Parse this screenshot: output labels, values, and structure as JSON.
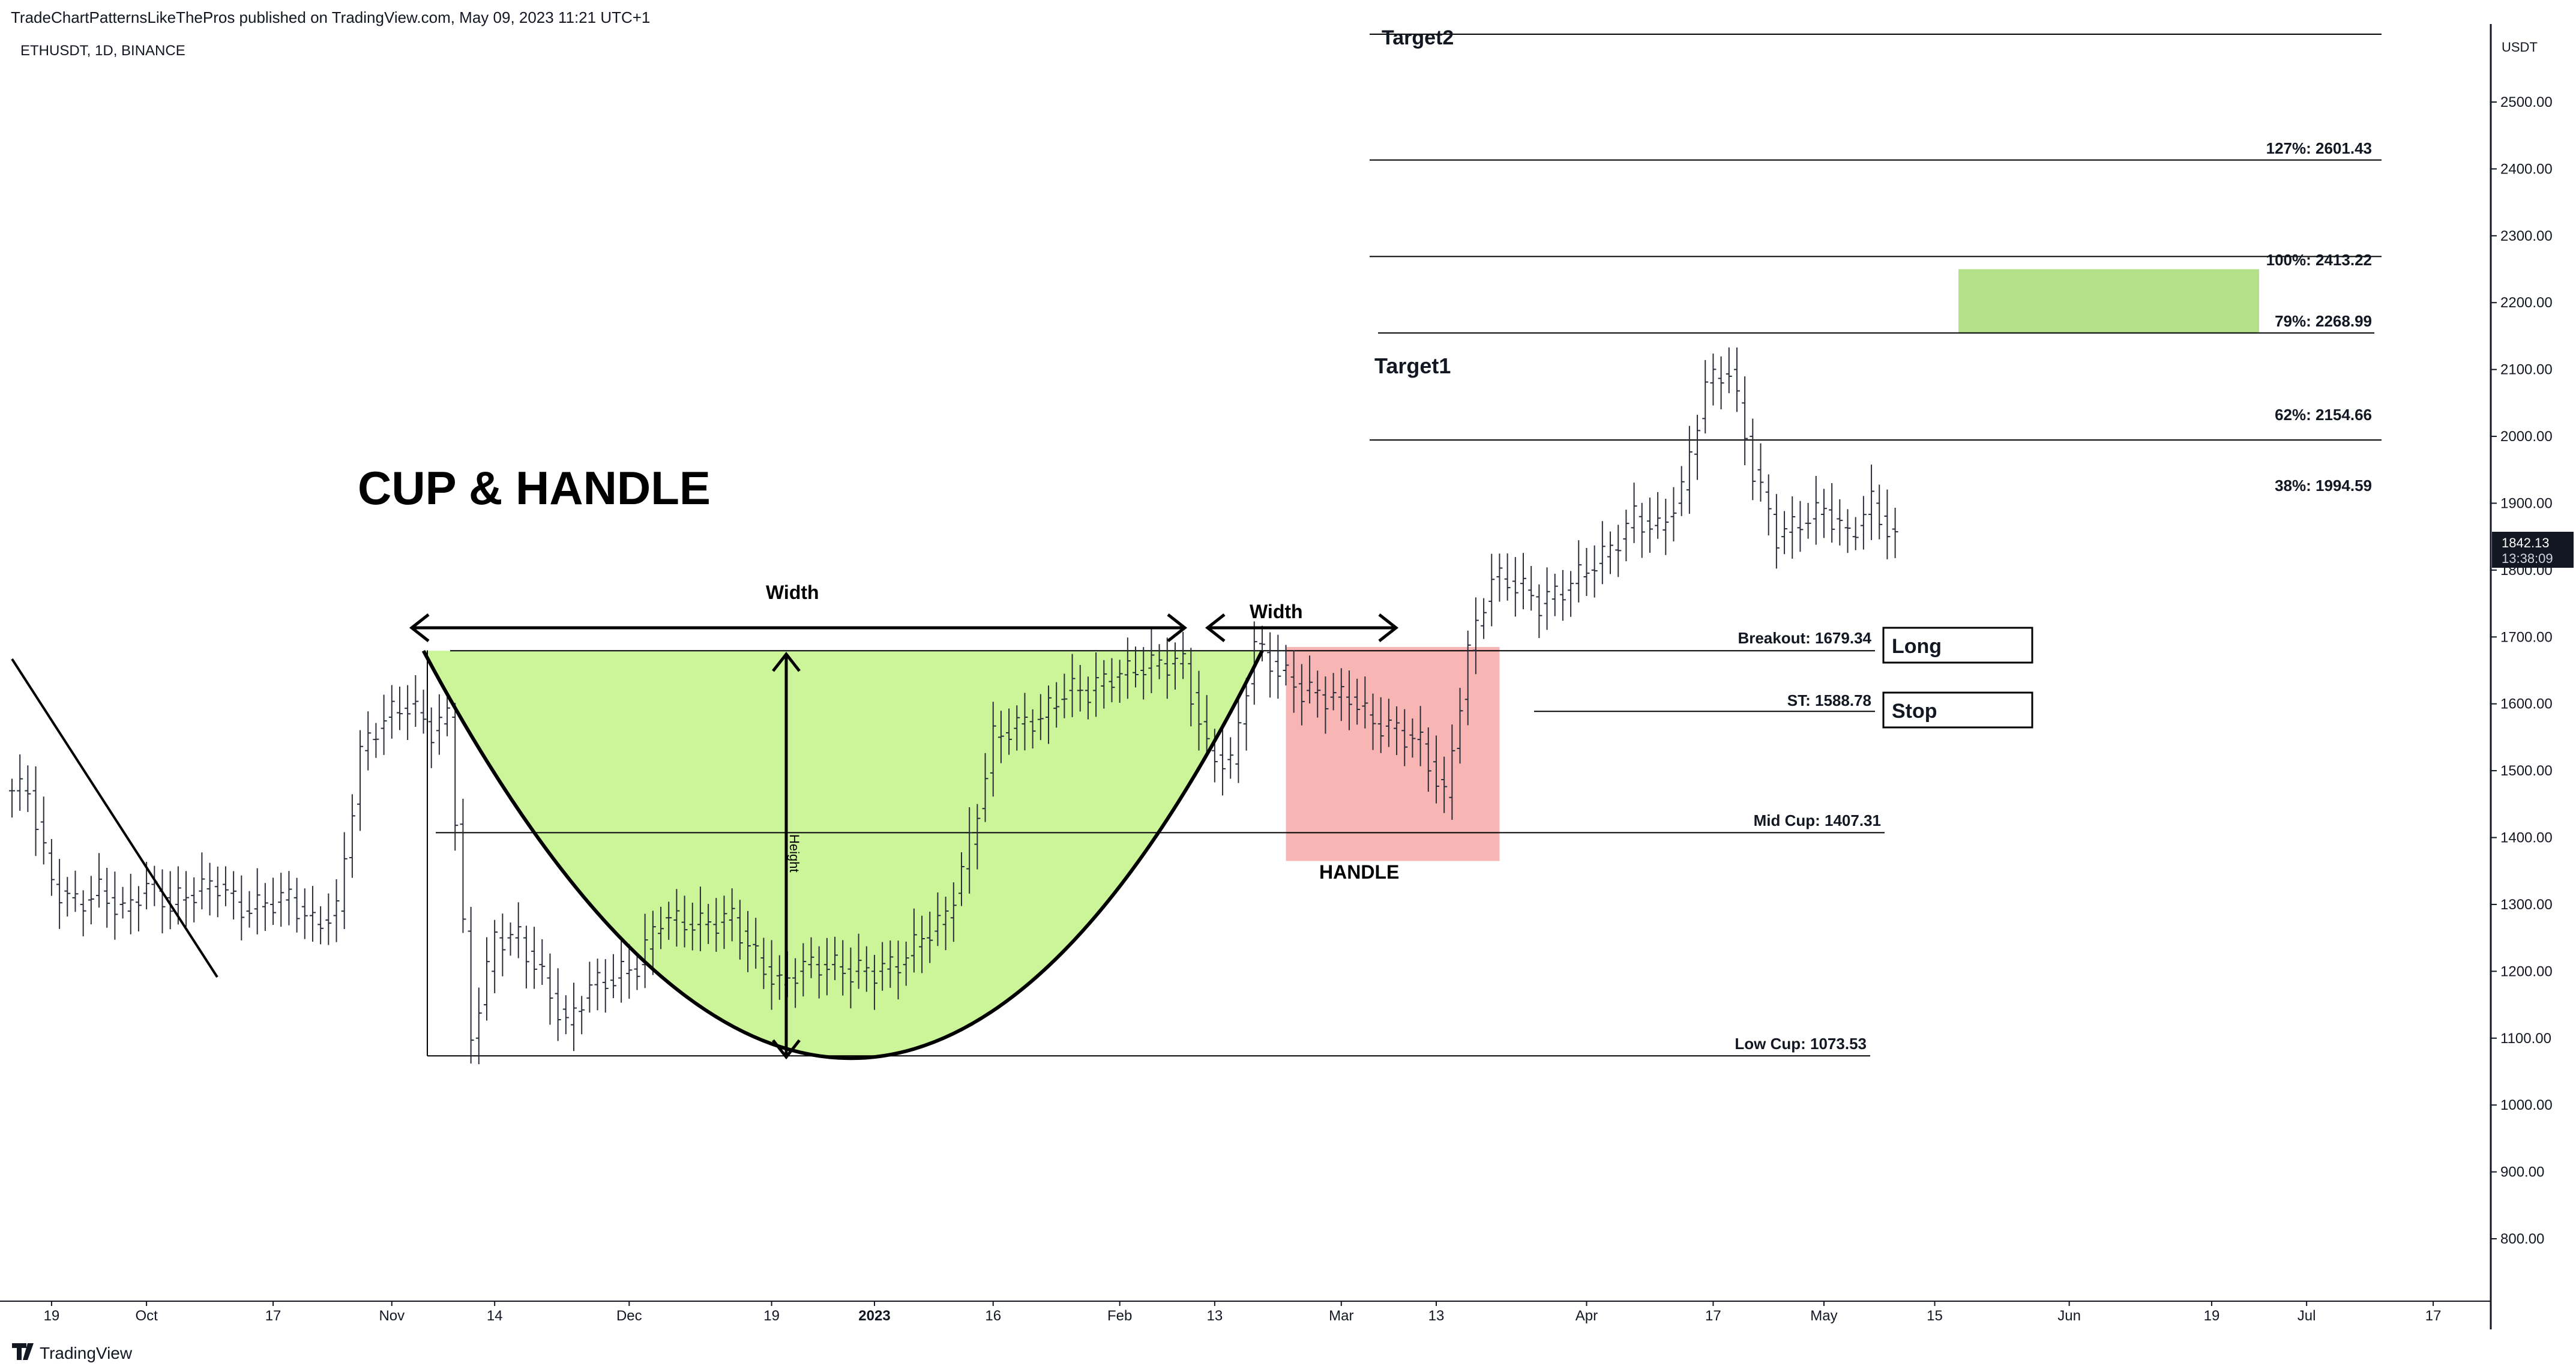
{
  "header": {
    "published_by": "TradeChartPatternsLikeThePros published on TradingView.com, May 09, 2023 11:21 UTC+1",
    "symbol": "ETHUSDT, 1D, BINANCE"
  },
  "footer": {
    "logo_text": "TradingView"
  },
  "price_scale": {
    "currency": "USDT",
    "ticks": [
      "2500.00",
      "2400.00",
      "2300.00",
      "2200.00",
      "2100.00",
      "2000.00",
      "1900.00",
      "1800.00",
      "1700.00",
      "1600.00",
      "1500.00",
      "1400.00",
      "1300.00",
      "1200.00",
      "1100.00",
      "1000.00",
      "900.00",
      "800.00"
    ],
    "last_price": "1842.13",
    "countdown": "13:38:09"
  },
  "time_axis": {
    "ticks": [
      "19",
      "Oct",
      "17",
      "Nov",
      "14",
      "Dec",
      "19",
      "2023",
      "16",
      "Feb",
      "13",
      "Mar",
      "13",
      "Apr",
      "17",
      "May",
      "15",
      "Jun",
      "19",
      "Jul",
      "17"
    ]
  },
  "annotations": {
    "title": "CUP & HANDLE",
    "cup_width": "Width",
    "handle_width": "Width",
    "height": "Height",
    "handle": "HANDLE",
    "target1": "Target1",
    "target2": "Target2",
    "breakout": "Breakout: 1679.34",
    "stop_level": "ST: 1588.78",
    "mid_cup": "Mid Cup: 1407.31",
    "low_cup": "Low Cup: 1073.53",
    "long_box": "Long",
    "stop_box": "Stop",
    "fib_127": "127%: 2601.43",
    "fib_100": "100%: 2413.22",
    "fib_79": "79%: 2268.99",
    "fib_62": "62%: 2154.66",
    "fib_38": "38%: 1994.59"
  },
  "colors": {
    "cup_fill": "#ccf59a",
    "handle_fill": "#f7b5b3",
    "target_fill": "#b5e08a",
    "bar": "#2a2e39",
    "line": "#000000",
    "grid_text": "#131722",
    "last_price_bg": "#131722"
  },
  "chart_data": {
    "type": "ohlc",
    "symbol": "ETHUSDT",
    "interval": "1D",
    "x_range": [
      "2022-09-14",
      "2023-07-22"
    ],
    "ylim": [
      720,
      2690
    ],
    "levels": {
      "breakout": 1679.34,
      "stop": 1588.78,
      "mid_cup": 1407.31,
      "low_cup": 1073.53,
      "fib_127": 2601.43,
      "fib_100": 2413.22,
      "fib_79": 2268.99,
      "fib_62": 2154.66,
      "fib_38": 1994.59
    },
    "last_price": 1842.13,
    "series": [
      {
        "name": "",
        "x": [
          "2022-09-14",
          "2022-09-17",
          "2022-09-20",
          "2022-09-23",
          "2022-09-26",
          "2022-09-29",
          "2022-10-02",
          "2022-10-05",
          "2022-10-08",
          "2022-10-11",
          "2022-10-14",
          "2022-10-17",
          "2022-10-20",
          "2022-10-23",
          "2022-10-26",
          "2022-10-29",
          "2022-11-01",
          "2022-11-04",
          "2022-11-07",
          "2022-11-09",
          "2022-11-12",
          "2022-11-15",
          "2022-11-18",
          "2022-11-21",
          "2022-11-24",
          "2022-11-27",
          "2022-11-30",
          "2022-12-03",
          "2022-12-06",
          "2022-12-09",
          "2022-12-12",
          "2022-12-15",
          "2022-12-18",
          "2022-12-21",
          "2022-12-24",
          "2022-12-27",
          "2022-12-30",
          "2023-01-02",
          "2023-01-05",
          "2023-01-08",
          "2023-01-11",
          "2023-01-14",
          "2023-01-17",
          "2023-01-20",
          "2023-01-23",
          "2023-01-26",
          "2023-01-29",
          "2023-02-01",
          "2023-02-04",
          "2023-02-07",
          "2023-02-10",
          "2023-02-13",
          "2023-02-16",
          "2023-02-19",
          "2023-02-22",
          "2023-02-25",
          "2023-02-28",
          "2023-03-03",
          "2023-03-06",
          "2023-03-09",
          "2023-03-12",
          "2023-03-15",
          "2023-03-18",
          "2023-03-21",
          "2023-03-24",
          "2023-03-27",
          "2023-03-30",
          "2023-04-02",
          "2023-04-05",
          "2023-04-08",
          "2023-04-11",
          "2023-04-14",
          "2023-04-17",
          "2023-04-20",
          "2023-04-23",
          "2023-04-26",
          "2023-04-29",
          "2023-05-02",
          "2023-05-05",
          "2023-05-08"
        ],
        "close": [
          1470,
          1330,
          1300,
          1320,
          1290,
          1330,
          1300,
          1320,
          1330,
          1290,
          1300,
          1310,
          1270,
          1290,
          1530,
          1580,
          1600,
          1560,
          1580,
          1100,
          1250,
          1250,
          1190,
          1120,
          1180,
          1190,
          1210,
          1280,
          1270,
          1270,
          1280,
          1220,
          1180,
          1210,
          1210,
          1200,
          1200,
          1210,
          1250,
          1280,
          1390,
          1550,
          1570,
          1580,
          1620,
          1620,
          1640,
          1650,
          1660,
          1660,
          1530,
          1510,
          1690,
          1650,
          1620,
          1610,
          1610,
          1570,
          1560,
          1540,
          1460,
          1680,
          1790,
          1780,
          1750,
          1770,
          1800,
          1830,
          1880,
          1860,
          1920,
          2080,
          2100,
          1950,
          1850,
          1870,
          1890,
          1850,
          1900,
          1842
        ]
      }
    ],
    "cup": {
      "left": "2022-11-05",
      "bottom": "2022-12-30",
      "right": "2023-02-19"
    },
    "handle": {
      "start": "2023-02-22",
      "end": "2023-03-21"
    },
    "target_zone": {
      "start": "2023-05-18",
      "end": "2023-06-25",
      "low": 2154.66,
      "high": 2250
    }
  }
}
